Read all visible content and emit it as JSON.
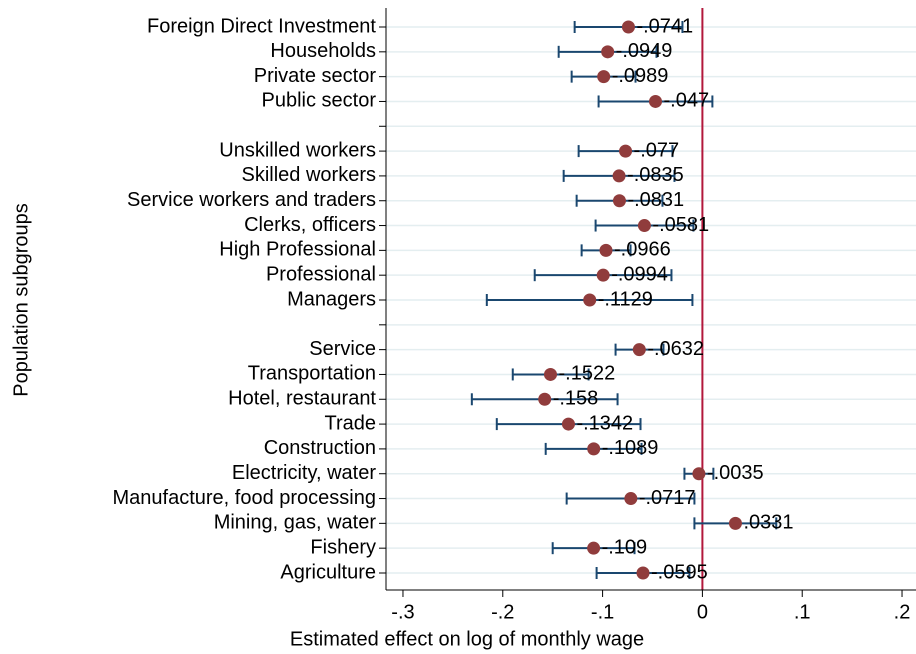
{
  "chart_data": {
    "type": "coefplot",
    "x_label": "Estimated effect on log of monthly wage",
    "y_label": "Population subgroups",
    "categories": [
      "Foreign Direct Investment",
      "Households",
      "Private sector",
      "Public sector",
      null,
      "Unskilled workers",
      "Skilled workers",
      "Service workers and traders",
      "Clerks, officers",
      "High Professional",
      "Professional",
      "Managers",
      null,
      "Service",
      "Transportation",
      "Hotel, restaurant",
      "Trade",
      "Construction",
      "Electricity, water",
      "Manufacture, food processing",
      "Mining, gas, water",
      "Fishery",
      "Agriculture"
    ],
    "values": [
      -0.0741,
      -0.0949,
      -0.0989,
      -0.047,
      null,
      -0.077,
      -0.0835,
      -0.0831,
      -0.0581,
      -0.0966,
      -0.0994,
      -0.1129,
      null,
      -0.0632,
      -0.1522,
      -0.158,
      -0.1342,
      -0.1089,
      -0.0035,
      -0.0717,
      0.0331,
      -0.109,
      -0.0595
    ],
    "value_labels": [
      "-.0741",
      "-.0949",
      "-.0989",
      "-.047",
      null,
      "-.077",
      "-.0835",
      "-.0831",
      "-.0581",
      "-.0966",
      "-.0994",
      "-.1129",
      null,
      "-.0632",
      "-.1522",
      "-.158",
      "-.1342",
      "-.1089",
      "-.0035",
      "-.0717",
      ".0331",
      "-.109",
      "-.0595"
    ],
    "lower": [
      -0.128,
      -0.144,
      -0.131,
      -0.104,
      null,
      -0.124,
      -0.139,
      -0.126,
      -0.107,
      -0.121,
      -0.168,
      -0.216,
      null,
      -0.087,
      -0.19,
      -0.231,
      -0.206,
      -0.157,
      -0.018,
      -0.136,
      -0.008,
      -0.15,
      -0.106
    ],
    "upper": [
      -0.02,
      -0.046,
      -0.067,
      0.01,
      null,
      -0.03,
      -0.028,
      -0.04,
      -0.009,
      -0.072,
      -0.031,
      -0.01,
      null,
      -0.039,
      -0.114,
      -0.085,
      -0.062,
      -0.061,
      0.011,
      -0.008,
      0.074,
      -0.068,
      -0.013
    ],
    "xlim": [
      -0.317,
      0.214
    ],
    "xticks": [
      {
        "value": -0.3,
        "label": "-.3"
      },
      {
        "value": -0.2,
        "label": "-.2"
      },
      {
        "value": -0.1,
        "label": "-.1"
      },
      0,
      {
        "value": 0.1,
        "label": ".1"
      },
      {
        "value": 0.2,
        "label": ".2"
      }
    ],
    "xline": 0,
    "grid": true,
    "marker_color": "#903c3c",
    "ci_color": "#1a476f",
    "label_color": "#a04848",
    "xline_color": "#b2183b",
    "grid_color": "#e4eef0"
  }
}
